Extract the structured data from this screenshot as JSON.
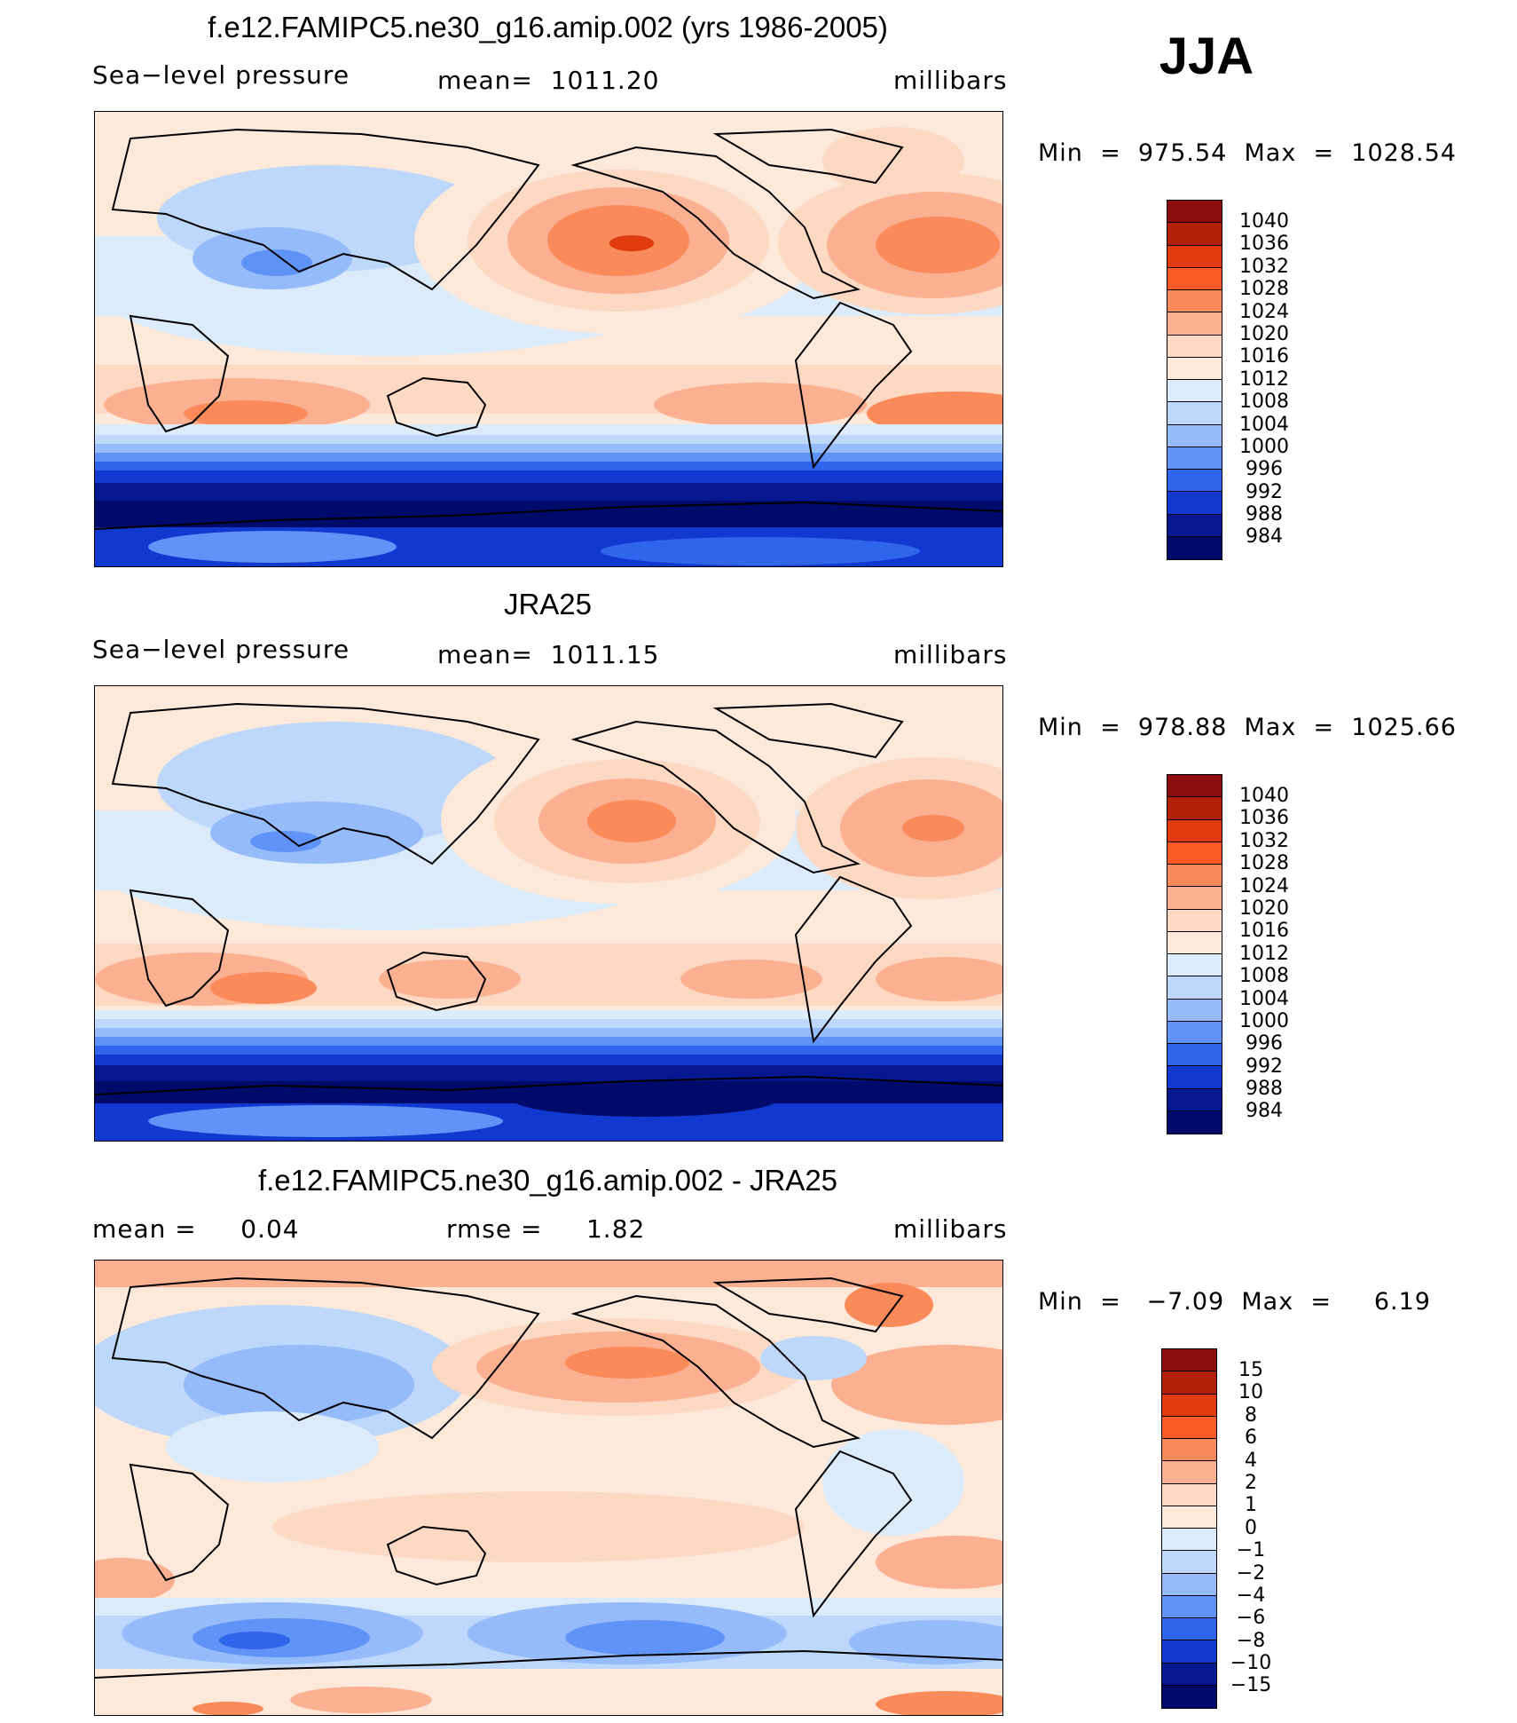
{
  "season": "JJA",
  "panels": [
    {
      "title": "f.e12.FAMIPC5.ne30_g16.amip.002 (yrs 1986-2005)",
      "left_label": "Sea−level pressure",
      "center_label": "mean=  1011.20",
      "right_label": "millibars",
      "minmax": "Min  =  975.54  Max  =  1028.54",
      "colorbar_labels": [
        "1040",
        "1036",
        "1032",
        "1028",
        "1024",
        "1020",
        "1016",
        "1012",
        "1008",
        "1004",
        "1000",
        "996",
        "992",
        "988",
        "984"
      ],
      "colors": [
        "#8b0d0d",
        "#b3200a",
        "#e03a0f",
        "#fb5a25",
        "#fa8a5a",
        "#fbb091",
        "#fdd8c2",
        "#fde9da",
        "#dcebfa",
        "#bdd8fb",
        "#96bbfb",
        "#5f93f7",
        "#2f64ec",
        "#1239cf",
        "#06188f",
        "#000a6b"
      ]
    },
    {
      "title": "JRA25",
      "left_label": "Sea−level pressure",
      "center_label": "mean=  1011.15",
      "right_label": "millibars",
      "minmax": "Min  =  978.88  Max  =  1025.66",
      "colorbar_labels": [
        "1040",
        "1036",
        "1032",
        "1028",
        "1024",
        "1020",
        "1016",
        "1012",
        "1008",
        "1004",
        "1000",
        "996",
        "992",
        "988",
        "984"
      ],
      "colors": [
        "#8b0d0d",
        "#b3200a",
        "#e03a0f",
        "#fb5a25",
        "#fa8a5a",
        "#fbb091",
        "#fdd8c2",
        "#fde9da",
        "#dcebfa",
        "#bdd8fb",
        "#96bbfb",
        "#5f93f7",
        "#2f64ec",
        "#1239cf",
        "#06188f",
        "#000a6b"
      ]
    },
    {
      "title": "f.e12.FAMIPC5.ne30_g16.amip.002 - JRA25",
      "left_label": "mean =     0.04",
      "center_label": "rmse =     1.82",
      "right_label": "millibars",
      "minmax": "Min  =   −7.09  Max  =     6.19",
      "colorbar_labels": [
        "15",
        "10",
        "8",
        "6",
        "4",
        "2",
        "1",
        "0",
        "−1",
        "−2",
        "−4",
        "−6",
        "−8",
        "−10",
        "−15"
      ],
      "colors": [
        "#8b0d0d",
        "#b3200a",
        "#e03a0f",
        "#fb5a25",
        "#fa8a5a",
        "#fbb091",
        "#fdd8c2",
        "#fde9da",
        "#dcebfa",
        "#bdd8fb",
        "#96bbfb",
        "#5f93f7",
        "#2f64ec",
        "#1239cf",
        "#06188f",
        "#000a6b"
      ]
    }
  ]
}
